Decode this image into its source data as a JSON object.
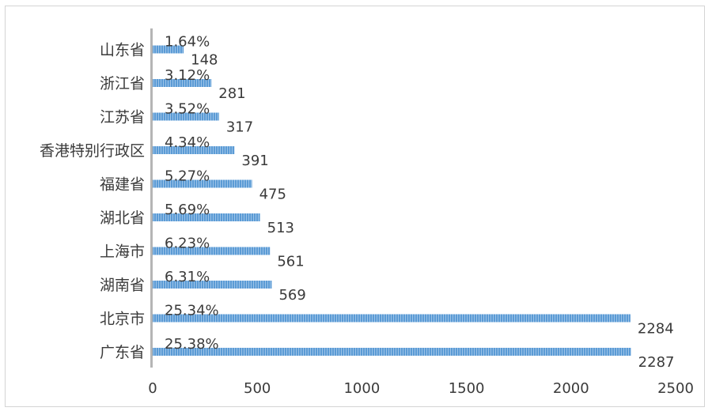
{
  "chart_data": {
    "type": "bar",
    "orientation": "horizontal",
    "categories": [
      "广东省",
      "北京市",
      "湖南省",
      "上海市",
      "湖北省",
      "福建省",
      "香港特别行政区",
      "江苏省",
      "浙江省",
      "山东省"
    ],
    "values": [
      2287,
      2284,
      569,
      561,
      513,
      475,
      391,
      317,
      281,
      148
    ],
    "percent_labels": [
      "25.38%",
      "25.34%",
      "6.31%",
      "6.23%",
      "5.69%",
      "5.27%",
      "4.34%",
      "3.52%",
      "3.12%",
      "1.64%"
    ],
    "value_labels": [
      "2287",
      "2284",
      "569",
      "561",
      "513",
      "475",
      "391",
      "317",
      "281",
      "148"
    ],
    "xlim": [
      0,
      2500
    ],
    "xticks": [
      "0",
      "500",
      "1000",
      "1500",
      "2000",
      "2500"
    ],
    "bar_color": "#5b9bd5",
    "grid": false,
    "legend": "none"
  }
}
